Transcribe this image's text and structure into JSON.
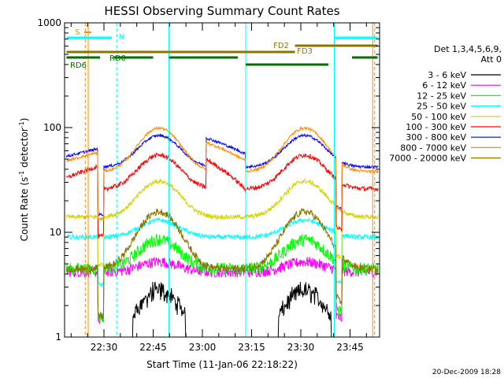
{
  "chart_data": {
    "type": "line",
    "title": "HESSI Observing Summary Count Rates",
    "xlabel": "Start Time (11-Jan-06 22:18:22)",
    "ylabel": "Count Rate (s⁻¹ detector⁻¹)",
    "ylabel_main": "Count Rate (s",
    "ylabel_sup1": "-1",
    "ylabel_mid": " detector",
    "ylabel_sup2": "-1",
    "ylabel_end": ")",
    "yscale": "log",
    "ylim": [
      1,
      1000
    ],
    "xlim_minutes": [
      22.3,
      23.9
    ],
    "x_unit": "hours after 22:00 on 11-Jan-06 (fractional)",
    "xticks": [
      {
        "value": 22.5,
        "label": "22:30"
      },
      {
        "value": 22.75,
        "label": "22:45"
      },
      {
        "value": 23.0,
        "label": "23:00"
      },
      {
        "value": 23.25,
        "label": "23:15"
      },
      {
        "value": 23.5,
        "label": "23:30"
      },
      {
        "value": 23.75,
        "label": "23:45"
      }
    ],
    "yticks": [
      {
        "value": 1,
        "label": "1"
      },
      {
        "value": 10,
        "label": "10"
      },
      {
        "value": 100,
        "label": "100"
      },
      {
        "value": 1000,
        "label": "1000"
      }
    ],
    "legend_header": [
      "Det 1,3,4,5,6,9,",
      "Att 0"
    ],
    "legend_placement": "right",
    "footer_date": "20-Dec-2009 18:28",
    "series": [
      {
        "name": "3 - 6 keV",
        "color": "#000000",
        "base": 1.0,
        "amp": 1.8,
        "noise": 0.12,
        "lo": 1.0
      },
      {
        "name": "6 - 12 keV",
        "color": "#ff00ff",
        "base": 4.2,
        "amp": 1.25,
        "noise": 0.12,
        "lo": 1.0
      },
      {
        "name": "12 - 25 keV",
        "color": "#00ff00",
        "base": 4.5,
        "amp": 1.9,
        "noise": 0.14,
        "lo": 1.0
      },
      {
        "name": "25 - 50 keV",
        "color": "#00ffff",
        "base": 9.0,
        "amp": 1.45,
        "noise": 0.05,
        "lo": 1.0
      },
      {
        "name": "50 - 100 keV",
        "color": "#d4d400",
        "base": 14.0,
        "amp": 2.2,
        "noise": 0.05,
        "lo": 1.0
      },
      {
        "name": "100 - 300 keV",
        "color": "#ff0000",
        "base": 26.0,
        "amp": 2.1,
        "noise": 0.05,
        "lo": 1.0
      },
      {
        "name": "300 - 800 keV",
        "color": "#0000ff",
        "base": 42.0,
        "amp": 2.0,
        "noise": 0.03,
        "lo": 1.0
      },
      {
        "name": "800 - 7000 keV",
        "color": "#ff8c00",
        "base": 38.0,
        "amp": 2.6,
        "noise": 0.03,
        "lo": 1.0
      },
      {
        "name": "7000 - 20000 keV",
        "color": "#8b7500",
        "base": 4.5,
        "amp": 3.5,
        "noise": 0.08,
        "lo": 1.0
      }
    ],
    "annotations": {
      "S": {
        "label": "S",
        "color": "#ff8c00"
      },
      "N": {
        "label": "N",
        "color": "#00ffff"
      },
      "FD2": {
        "label": "FD2",
        "color": "#8b7500"
      },
      "FD3": {
        "label": "FD3",
        "color": "#8b7500"
      },
      "RD0": {
        "label": "RD0",
        "color": "#007000"
      },
      "RD6": {
        "label": "RD6",
        "color": "#007000"
      }
    }
  }
}
